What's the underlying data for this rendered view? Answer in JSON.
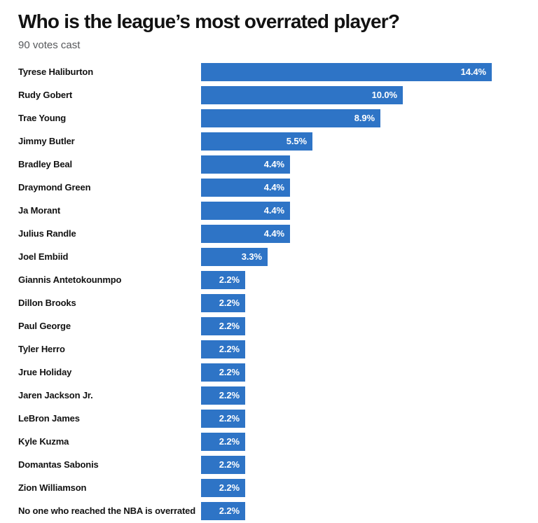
{
  "page": {
    "title": "Who is the league’s most overrated player?",
    "subtitle": "90 votes cast"
  },
  "chart_data": {
    "type": "bar",
    "orientation": "horizontal",
    "title": "Who is the league’s most overrated player?",
    "subtitle": "90 votes cast",
    "total_votes": 90,
    "bar_color": "#2e74c6",
    "value_label_color": "#ffffff",
    "category_label_color": "#121212",
    "grid": false,
    "legend": false,
    "xlim": [
      0,
      14.4
    ],
    "categories": [
      "Tyrese Haliburton",
      "Rudy Gobert",
      "Trae Young",
      "Jimmy Butler",
      "Bradley Beal",
      "Draymond Green",
      "Ja Morant",
      "Julius Randle",
      "Joel Embiid",
      "Giannis Antetokounmpo",
      "Dillon Brooks",
      "Paul George",
      "Tyler Herro",
      "Jrue Holiday",
      "Jaren Jackson Jr.",
      "LeBron James",
      "Kyle Kuzma",
      "Domantas Sabonis",
      "Zion Williamson",
      "No one who reached the NBA is overrated"
    ],
    "values": [
      14.4,
      10.0,
      8.9,
      5.5,
      4.4,
      4.4,
      4.4,
      4.4,
      3.3,
      2.2,
      2.2,
      2.2,
      2.2,
      2.2,
      2.2,
      2.2,
      2.2,
      2.2,
      2.2,
      2.2
    ],
    "value_labels": [
      "14.4%",
      "10.0%",
      "8.9%",
      "5.5%",
      "4.4%",
      "4.4%",
      "4.4%",
      "4.4%",
      "3.3%",
      "2.2%",
      "2.2%",
      "2.2%",
      "2.2%",
      "2.2%",
      "2.2%",
      "2.2%",
      "2.2%",
      "2.2%",
      "2.2%",
      "2.2%"
    ]
  }
}
